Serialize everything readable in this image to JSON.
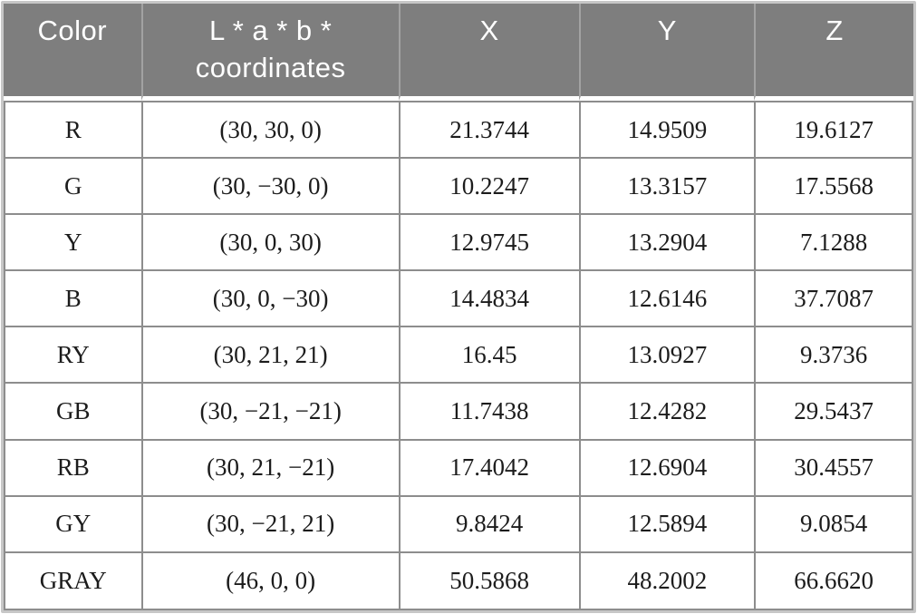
{
  "table": {
    "columns": [
      "Color",
      "L * a * b * coordinates",
      "X",
      "Y",
      "Z"
    ],
    "rows": [
      {
        "color": "R",
        "lab": "(30, 30, 0)",
        "x": "21.3744",
        "y": "14.9509",
        "z": "19.6127"
      },
      {
        "color": "G",
        "lab": "(30, −30, 0)",
        "x": "10.2247",
        "y": "13.3157",
        "z": "17.5568"
      },
      {
        "color": "Y",
        "lab": "(30, 0, 30)",
        "x": "12.9745",
        "y": "13.2904",
        "z": "7.1288"
      },
      {
        "color": "B",
        "lab": "(30, 0, −30)",
        "x": "14.4834",
        "y": "12.6146",
        "z": "37.7087"
      },
      {
        "color": "RY",
        "lab": "(30, 21, 21)",
        "x": "16.45",
        "y": "13.0927",
        "z": "9.3736"
      },
      {
        "color": "GB",
        "lab": "(30, −21, −21)",
        "x": "11.7438",
        "y": "12.4282",
        "z": "29.5437"
      },
      {
        "color": "RB",
        "lab": "(30, 21, −21)",
        "x": "17.4042",
        "y": "12.6904",
        "z": "30.4557"
      },
      {
        "color": "GY",
        "lab": "(30, −21, 21)",
        "x": "9.8424",
        "y": "12.5894",
        "z": "9.0854"
      },
      {
        "color": "GRAY",
        "lab": "(46, 0, 0)",
        "x": "50.5868",
        "y": "48.2002",
        "z": "66.6620"
      }
    ],
    "colors": {
      "header_background": "#7e7e7e",
      "header_text": "#ffffff",
      "cell_border": "#8d8d8d",
      "header_separator": "#a2a2a2",
      "outer_frame": "#c7c7c7",
      "body_text": "#1c1c1c"
    }
  }
}
